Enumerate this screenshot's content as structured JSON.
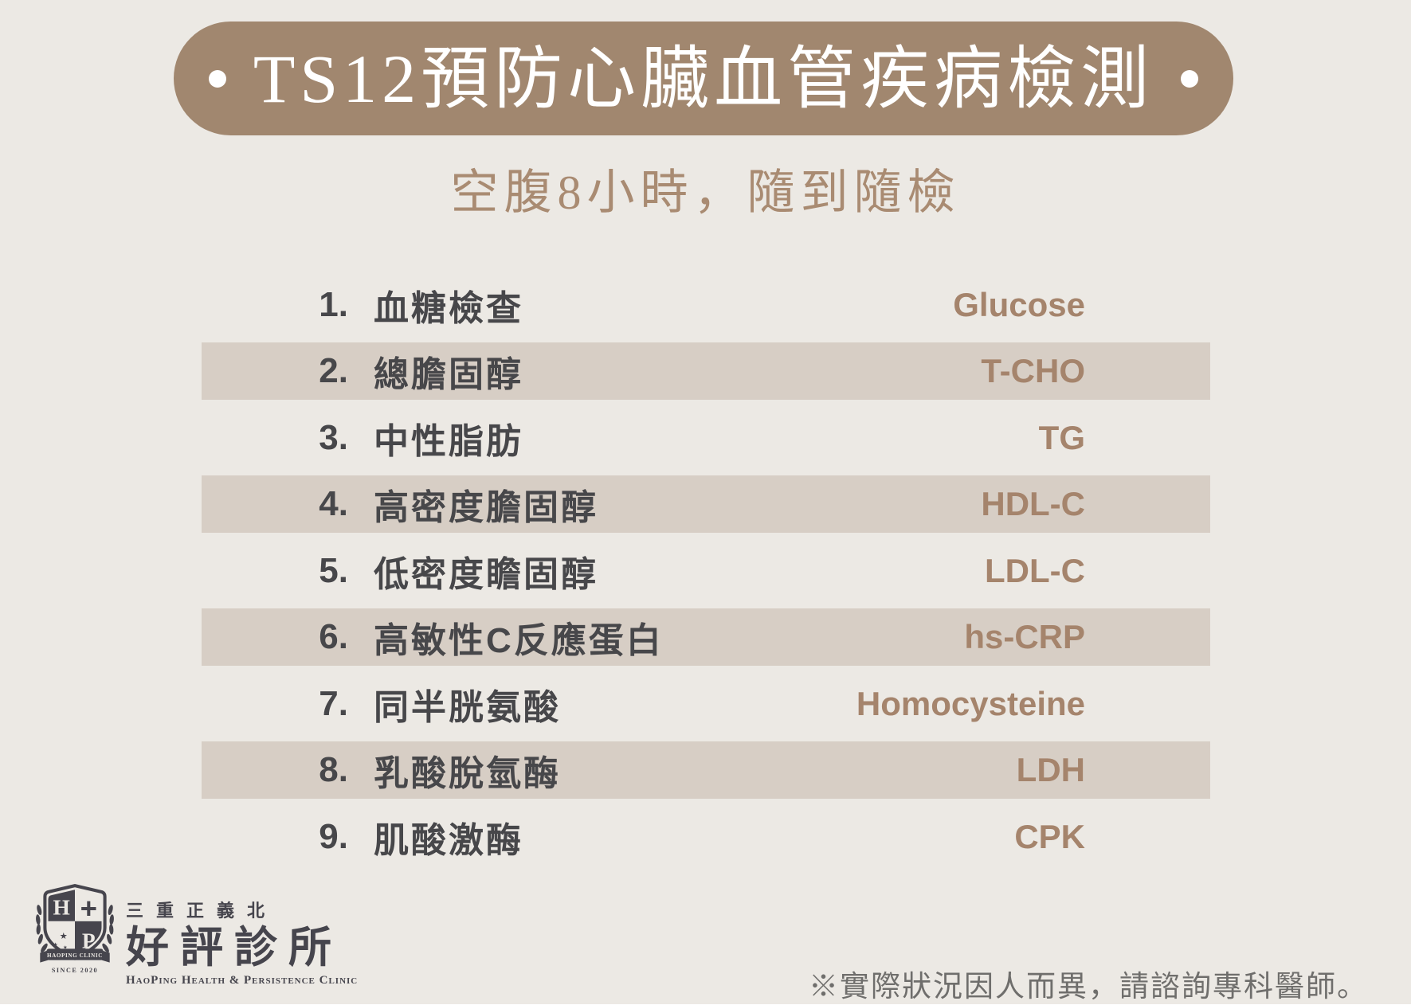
{
  "poster": {
    "title": {
      "dot_left": "·",
      "text": "TS12預防心臟血管疾病檢測",
      "dot_right": "·"
    },
    "subtitle": "空腹8小時，隨到隨檢"
  },
  "tests": [
    {
      "no": "1.",
      "name": "血糖檢查",
      "abbr": "Glucose"
    },
    {
      "no": "2.",
      "name": "總膽固醇",
      "abbr": "T-CHO"
    },
    {
      "no": "3.",
      "name": "中性脂肪",
      "abbr": "TG"
    },
    {
      "no": "4.",
      "name": "高密度膽固醇",
      "abbr": "HDL-C"
    },
    {
      "no": "5.",
      "name": "低密度瞻固醇",
      "abbr": "LDL-C"
    },
    {
      "no": "6.",
      "name": "高敏性C反應蛋白",
      "abbr": "hs-CRP"
    },
    {
      "no": "7.",
      "name": "同半胱氨酸",
      "abbr": "Homocysteine"
    },
    {
      "no": "8.",
      "name": "乳酸脫氫酶",
      "abbr": "LDH"
    },
    {
      "no": "9.",
      "name": "肌酸激酶",
      "abbr": "CPK"
    }
  ],
  "footer": {
    "logo": {
      "district": "三重正義北",
      "clinic_name_zh": "好評診所",
      "clinic_name_en": "HaoPing Health & Persistence Clinic",
      "shield": {
        "letter_h": "H",
        "plus": "+",
        "letter_p": "P",
        "ribbon": "HAOPING CLINIC",
        "since": "SINCE 2020"
      }
    },
    "disclaimer": "※實際狀況因人而異，請諮詢專科醫師。"
  },
  "colors": {
    "background": "#ECE9E4",
    "banner": "#A1876F",
    "stripe": "#D7CEC5",
    "text_dark": "#47474A",
    "text_brown": "#A5846C",
    "logo_dark": "#46454D",
    "disclaimer_gray": "#6F6E6C"
  }
}
